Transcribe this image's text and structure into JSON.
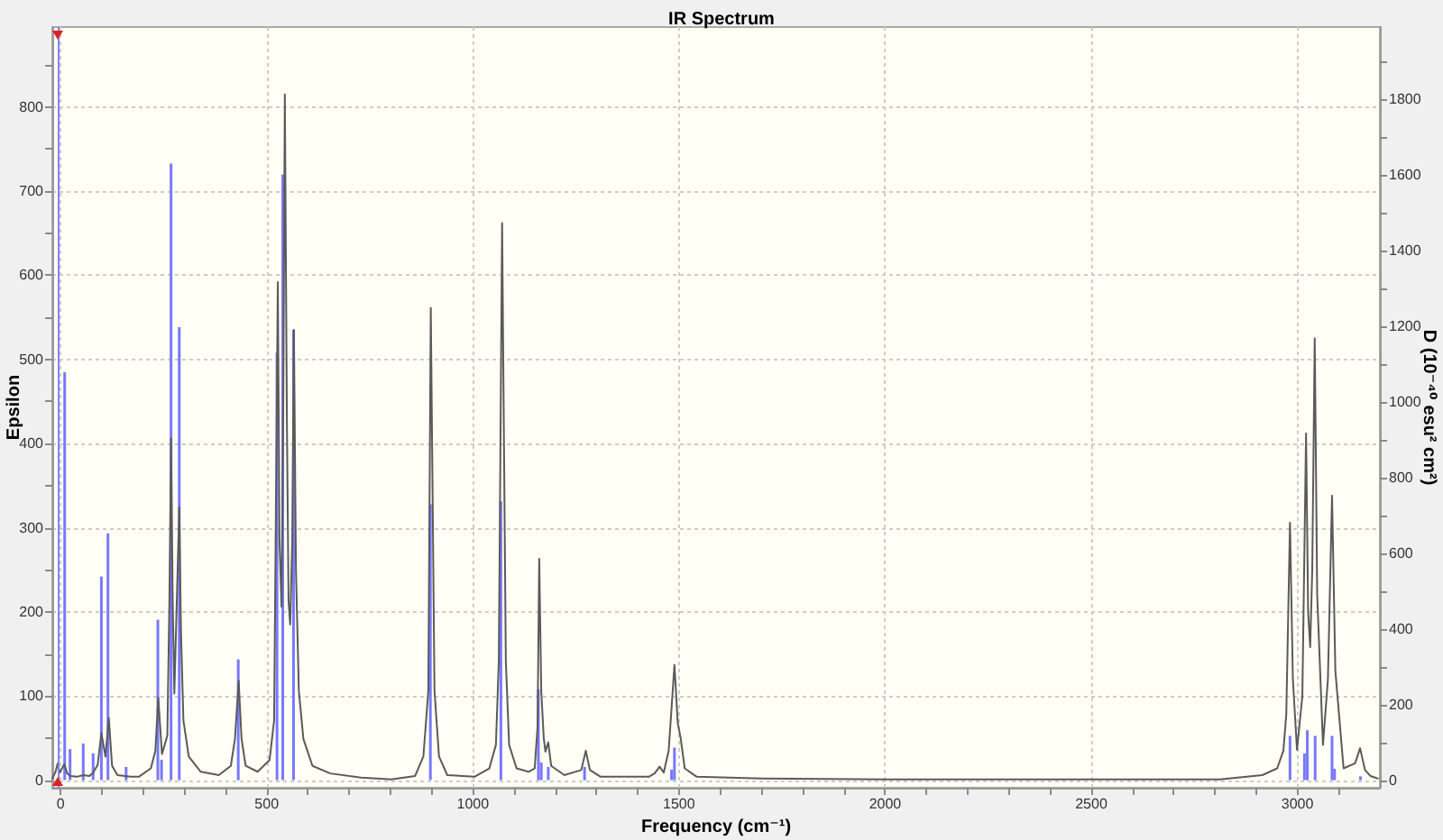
{
  "chart_data": {
    "type": "line",
    "title": "IR Spectrum",
    "xlabel": "Frequency (cm⁻¹)",
    "ylabel": "Epsilon",
    "y2label": "D (10⁻⁴⁰ esu² cm²)",
    "xlim": [
      -20,
      3200
    ],
    "xticks": [
      0,
      {
        "value": 100,
        "label": null
      },
      {
        "value": 200,
        "label": null
      },
      {
        "value": 300,
        "label": null
      },
      {
        "value": 400,
        "label": null
      },
      500,
      {
        "value": 600,
        "label": null
      },
      {
        "value": 700,
        "label": null
      },
      {
        "value": 800,
        "label": null
      },
      {
        "value": 900,
        "label": null
      },
      1000,
      {
        "value": 1100,
        "label": null
      },
      {
        "value": 1200,
        "label": null
      },
      {
        "value": 1300,
        "label": null
      },
      {
        "value": 1400,
        "label": null
      },
      1500,
      {
        "value": 1600,
        "label": null
      },
      {
        "value": 1700,
        "label": null
      },
      {
        "value": 1800,
        "label": null
      },
      {
        "value": 1900,
        "label": null
      },
      2000,
      {
        "value": 2100,
        "label": null
      },
      {
        "value": 2200,
        "label": null
      },
      {
        "value": 2300,
        "label": null
      },
      {
        "value": 2400,
        "label": null
      },
      2500,
      {
        "value": 2600,
        "label": null
      },
      {
        "value": 2700,
        "label": null
      },
      {
        "value": 2800,
        "label": null
      },
      {
        "value": 2900,
        "label": null
      },
      3000,
      {
        "value": 3100,
        "label": null
      }
    ],
    "ylim": [
      -9,
      895
    ],
    "yticks": [
      0,
      {
        "value": 50,
        "label": null
      },
      100,
      {
        "value": 150,
        "label": null
      },
      200,
      {
        "value": 250,
        "label": null
      },
      300,
      {
        "value": 350,
        "label": null
      },
      400,
      {
        "value": 450,
        "label": null
      },
      500,
      {
        "value": 550,
        "label": null
      },
      600,
      {
        "value": 650,
        "label": null
      },
      700,
      {
        "value": 750,
        "label": null
      },
      800,
      {
        "value": 850,
        "label": null
      }
    ],
    "y2lim": [
      -20,
      1990
    ],
    "y2ticks": [
      0,
      {
        "value": 100,
        "label": null
      },
      200,
      {
        "value": 300,
        "label": null
      },
      400,
      {
        "value": 500,
        "label": null
      },
      600,
      {
        "value": 700,
        "label": null
      },
      800,
      {
        "value": 900,
        "label": null
      },
      1000,
      {
        "value": 1100,
        "label": null
      },
      1200,
      {
        "value": 1300,
        "label": null
      },
      1400,
      {
        "value": 1500,
        "label": null
      },
      1600,
      {
        "value": 1700,
        "label": null
      },
      1800,
      {
        "value": 1900,
        "label": null
      }
    ],
    "grid": true,
    "marker": "none",
    "ref_lines": [
      {
        "axis": "x",
        "value": -7,
        "color": "#8080ff"
      }
    ],
    "series": [
      {
        "type": "bar",
        "axis": "y2",
        "color": "#7878ff",
        "x": [
          10,
          23,
          55,
          79,
          99,
          115,
          159,
          236,
          245,
          268,
          288,
          431,
          525,
          539,
          565,
          897,
          1068,
          1159,
          1166,
          1183,
          1271,
          1482,
          1489,
          2982,
          3017,
          3024,
          3043,
          3084,
          3090,
          3153
        ],
        "values": [
          1078,
          82,
          97,
          71,
          538,
          652,
          35,
          424,
          54,
          1629,
          1197,
          319,
          1130,
          1600,
          1190,
          729,
          737,
          240,
          47,
          35,
          35,
          28,
          86,
          117,
          71,
          132,
          117,
          117,
          30,
          10
        ]
      },
      {
        "color": "#5a5a5a",
        "x": [
          -20,
          -12,
          -7,
          -2,
          9,
          16,
          24,
          40,
          55,
          70,
          79,
          90,
          99,
          109,
          117,
          125,
          138,
          170,
          190,
          219,
          230,
          237,
          246,
          259,
          264,
          268,
          272,
          276,
          282,
          288,
          292,
          298,
          311,
          340,
          384,
          413,
          423,
          432,
          439,
          449,
          478,
          507,
          518,
          527,
          531,
          536,
          540,
          544,
          549,
          553,
          557,
          562,
          566,
          571,
          578,
          589,
          611,
          654,
          729,
          802,
          860,
          880,
          892,
          898,
          907,
          918,
          938,
          1004,
          1040,
          1056,
          1063,
          1071,
          1080,
          1088,
          1106,
          1135,
          1150,
          1157,
          1161,
          1166,
          1172,
          1176,
          1183,
          1190,
          1222,
          1263,
          1274,
          1284,
          1310,
          1427,
          1441,
          1453,
          1463,
          1475,
          1489,
          1497,
          1504,
          1514,
          1543,
          1700,
          2000,
          2400,
          2812,
          2915,
          2951,
          2966,
          2973,
          2982,
          2989,
          2999,
          3012,
          3021,
          3026,
          3031,
          3036,
          3042,
          3048,
          3062,
          3074,
          3084,
          3092,
          3112,
          3140,
          3152,
          3164,
          3177,
          3195
        ],
        "values": [
          2,
          10,
          20,
          9,
          19,
          8,
          5,
          4,
          6,
          5,
          9,
          18,
          56,
          28,
          74,
          17,
          6,
          4,
          4,
          14,
          35,
          98,
          31,
          53,
          213,
          406,
          213,
          103,
          213,
          324,
          178,
          71,
          28,
          10,
          6,
          17,
          49,
          118,
          49,
          17,
          10,
          24,
          71,
          592,
          285,
          206,
          428,
          815,
          428,
          213,
          185,
          285,
          535,
          249,
          106,
          49,
          17,
          8,
          3,
          1,
          5,
          28,
          106,
          561,
          106,
          28,
          6,
          4,
          14,
          42,
          142,
          662,
          142,
          42,
          14,
          10,
          14,
          64,
          263,
          105,
          50,
          34,
          45,
          17,
          6,
          12,
          35,
          12,
          4,
          4,
          8,
          16,
          9,
          35,
          137,
          68,
          50,
          14,
          4,
          2,
          1,
          1,
          1,
          6,
          14,
          35,
          78,
          306,
          120,
          36,
          100,
          412,
          200,
          158,
          250,
          525,
          220,
          42,
          120,
          338,
          130,
          14,
          20,
          38,
          12,
          5,
          2
        ]
      }
    ]
  }
}
